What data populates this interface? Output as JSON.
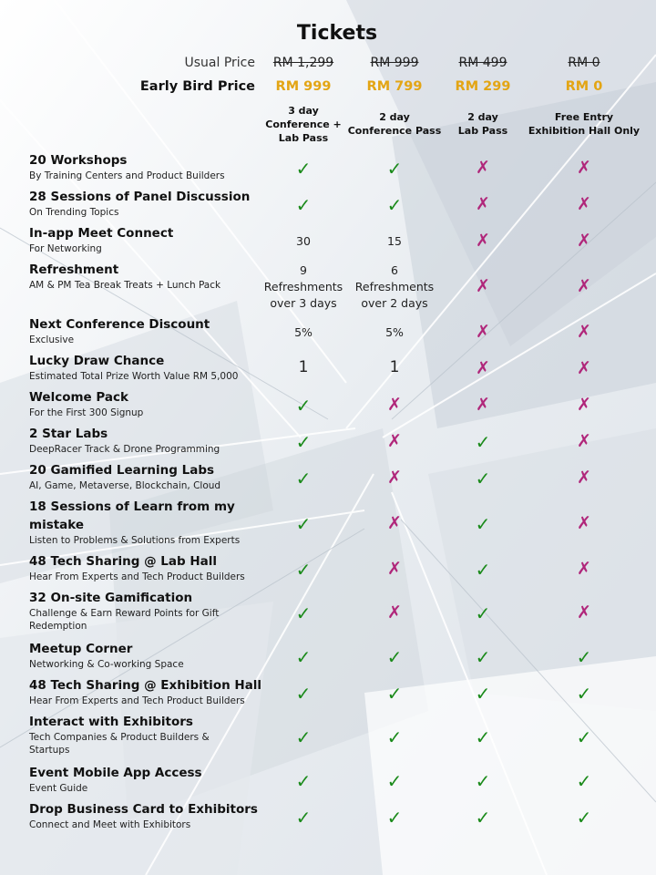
{
  "title": "Tickets",
  "usual_label": "Usual Price",
  "early_label": "Early Bird Price",
  "tiers": [
    {
      "usual": "RM 1,299",
      "early": "RM 999",
      "name": [
        "3 day",
        "Conference +",
        "Lab Pass"
      ]
    },
    {
      "usual": "RM 999",
      "early": "RM 799",
      "name": [
        "2 day",
        "Conference Pass"
      ]
    },
    {
      "usual": "RM 499",
      "early": "RM 299",
      "name": [
        "2 day",
        "Lab Pass"
      ]
    },
    {
      "usual": "RM 0",
      "early": "RM 0",
      "name": [
        "Free Entry",
        "Exhibition Hall Only"
      ]
    }
  ],
  "features": [
    {
      "title": [
        "20 Workshops"
      ],
      "sub": [
        "By Training Centers and Product Builders"
      ],
      "values": [
        "check",
        "check",
        "cross",
        "cross"
      ]
    },
    {
      "title": [
        "28 Sessions of Panel Discussion"
      ],
      "sub": [
        "On Trending Topics"
      ],
      "values": [
        "check",
        "check",
        "cross",
        "cross"
      ]
    },
    {
      "title": [
        "In-app Meet Connect"
      ],
      "sub": [
        "For Networking"
      ],
      "values": [
        "30",
        "15",
        "cross",
        "cross"
      ]
    },
    {
      "title": [
        "Refreshment"
      ],
      "sub": [
        "AM & PM Tea Break Treats + Lunch Pack"
      ],
      "values": [
        "9\nRefreshments\nover 3 days",
        "6\nRefreshments\nover 2 days",
        "cross",
        "cross"
      ]
    },
    {
      "title": [
        "Next Conference Discount"
      ],
      "sub": [
        "Exclusive"
      ],
      "values": [
        "5%",
        "5%",
        "cross",
        "cross"
      ]
    },
    {
      "title": [
        "Lucky Draw Chance"
      ],
      "sub": [
        "Estimated Total Prize Worth Value RM 5,000"
      ],
      "values": [
        "1",
        "1",
        "cross",
        "cross"
      ]
    },
    {
      "title": [
        "Welcome Pack"
      ],
      "sub": [
        "For the First 300 Signup"
      ],
      "values": [
        "check",
        "cross",
        "cross",
        "cross"
      ]
    },
    {
      "title": [
        "2 Star Labs"
      ],
      "sub": [
        "DeepRacer Track & Drone Programming"
      ],
      "values": [
        "check",
        "cross",
        "check",
        "cross"
      ]
    },
    {
      "title": [
        "20 Gamified Learning Labs"
      ],
      "sub": [
        "AI, Game, Metaverse, Blockchain, Cloud"
      ],
      "values": [
        "check",
        "cross",
        "check",
        "cross"
      ]
    },
    {
      "title": [
        "18 Sessions of Learn from my",
        "mistake"
      ],
      "sub": [
        "Listen to Problems & Solutions from Experts"
      ],
      "values": [
        "check",
        "cross",
        "check",
        "cross"
      ]
    },
    {
      "title": [
        "48 Tech Sharing @ Lab Hall"
      ],
      "sub": [
        "Hear From Experts and Tech Product Builders"
      ],
      "values": [
        "check",
        "cross",
        "check",
        "cross"
      ]
    },
    {
      "title": [
        "32 On-site Gamification"
      ],
      "sub": [
        "Challenge & Earn Reward Points for Gift",
        "Redemption"
      ],
      "values": [
        "check",
        "cross",
        "check",
        "cross"
      ]
    },
    {
      "title": [
        "Meetup Corner"
      ],
      "sub": [
        "Networking & Co-working Space"
      ],
      "values": [
        "check",
        "check",
        "check",
        "check"
      ]
    },
    {
      "title": [
        "48 Tech Sharing @ Exhibition Hall"
      ],
      "sub": [
        "Hear From Experts and Tech Product Builders"
      ],
      "values": [
        "check",
        "check",
        "check",
        "check"
      ]
    },
    {
      "title": [
        "Interact with Exhibitors"
      ],
      "sub": [
        "Tech Companies & Product Builders &",
        "Startups"
      ],
      "values": [
        "check",
        "check",
        "check",
        "check"
      ]
    },
    {
      "title": [
        "Event Mobile App Access"
      ],
      "sub": [
        "Event Guide"
      ],
      "values": [
        "check",
        "check",
        "check",
        "check"
      ]
    },
    {
      "title": [
        "Drop Business Card to Exhibitors"
      ],
      "sub": [
        "Connect and Meet with Exhibitors"
      ],
      "values": [
        "check",
        "check",
        "check",
        "check"
      ]
    }
  ],
  "colors": {
    "gold": "#e3a514",
    "check": "#1a8a1a",
    "cross": "#b0267a"
  }
}
